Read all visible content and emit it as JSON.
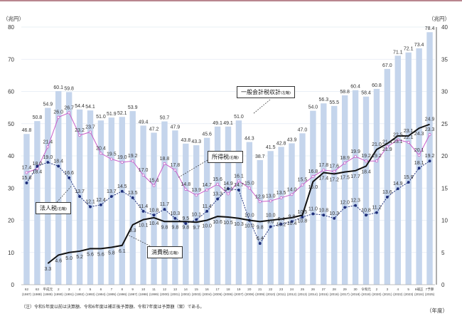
{
  "chart_data": {
    "type": "bar",
    "left_unit": "（兆円）",
    "right_unit": "（兆円）",
    "xlabel": "（年度）",
    "left_ylim": [
      0,
      80
    ],
    "right_ylim": [
      0,
      40
    ],
    "left_ticks": [
      0,
      10,
      20,
      30,
      40,
      50,
      60,
      70,
      80
    ],
    "right_ticks": [
      0,
      5,
      10,
      15,
      20,
      25,
      30,
      35,
      40
    ],
    "grid": true,
    "categories_era": [
      "62",
      "63",
      "平成元",
      "2",
      "3",
      "4",
      "5",
      "6",
      "7",
      "8",
      "9",
      "10",
      "11",
      "12",
      "13",
      "14",
      "15",
      "16",
      "17",
      "18",
      "19",
      "20",
      "21",
      "22",
      "23",
      "24",
      "25",
      "26",
      "27",
      "28",
      "29",
      "30",
      "令和元",
      "2",
      "3",
      "4",
      "5",
      "6補正",
      "7予算"
    ],
    "categories_year": [
      "(1987)",
      "(1988)",
      "(1989)",
      "(1990)",
      "(1991)",
      "(1992)",
      "(1993)",
      "(1994)",
      "(1995)",
      "(1996)",
      "(1997)",
      "(1998)",
      "(1999)",
      "(2000)",
      "(2001)",
      "(2002)",
      "(2003)",
      "(2004)",
      "(2005)",
      "(2006)",
      "(2007)",
      "(2008)",
      "(2009)",
      "(2010)",
      "(2011)",
      "(2012)",
      "(2013)",
      "(2014)",
      "(2015)",
      "(2016)",
      "(2017)",
      "(2018)",
      "(2019)",
      "(2020)",
      "(2021)",
      "(2022)",
      "(2023)",
      "(2024)",
      "(2025)"
    ],
    "series": [
      {
        "name": "一般会計税収計",
        "axis_note": "(左軸)",
        "type": "bar",
        "color": "#c5d5ec",
        "values": [
          46.8,
          50.8,
          54.9,
          60.1,
          59.8,
          54.4,
          54.1,
          51.0,
          51.9,
          52.1,
          53.9,
          49.4,
          47.2,
          50.7,
          47.9,
          43.8,
          43.3,
          45.6,
          49.1,
          49.1,
          51.0,
          44.3,
          38.7,
          41.5,
          42.8,
          43.9,
          47.0,
          54.0,
          56.3,
          55.5,
          58.8,
          60.4,
          58.4,
          60.8,
          67.0,
          71.1,
          72.1,
          73.4,
          78.4
        ]
      },
      {
        "name": "所得税",
        "axis_note": "(右軸)",
        "type": "line",
        "color": "#c85cc8",
        "values": [
          17.4,
          18.0,
          21.4,
          26.0,
          26.7,
          23.2,
          23.7,
          20.4,
          19.5,
          19.0,
          19.2,
          17.0,
          15.4,
          18.8,
          17.8,
          14.8,
          13.9,
          14.7,
          15.6,
          14.1,
          16.1,
          15.0,
          12.9,
          13.0,
          13.5,
          14.0,
          15.5,
          16.8,
          17.8,
          17.6,
          18.9,
          19.9,
          19.2,
          19.2,
          21.4,
          22.5,
          22.1,
          20.1,
          23.3
        ]
      },
      {
        "name": "法人税",
        "axis_note": "(右軸)",
        "type": "line",
        "dashed": true,
        "color": "#1f2f7a",
        "values": [
          15.8,
          18.4,
          19.0,
          18.4,
          16.6,
          13.7,
          12.1,
          12.4,
          13.7,
          14.5,
          13.5,
          11.4,
          10.8,
          11.7,
          10.3,
          9.5,
          10.1,
          11.4,
          13.3,
          14.9,
          14.7,
          10.0,
          6.4,
          9.0,
          9.4,
          9.8,
          10.5,
          11.0,
          10.8,
          10.3,
          12.0,
          12.3,
          10.8,
          11.2,
          13.6,
          14.9,
          15.9,
          18.1,
          19.2
        ]
      },
      {
        "name": "消費税",
        "axis_note": "(右軸)",
        "type": "line",
        "color": "#111111",
        "values": [
          null,
          null,
          3.3,
          4.6,
          5.0,
          5.2,
          5.6,
          5.6,
          5.8,
          6.1,
          9.3,
          10.1,
          10.4,
          9.8,
          9.8,
          9.8,
          9.7,
          10.0,
          10.6,
          10.5,
          10.3,
          10.0,
          9.8,
          10.0,
          10.2,
          10.4,
          10.8,
          16.0,
          17.4,
          17.2,
          17.5,
          17.7,
          18.4,
          21.0,
          21.9,
          23.1,
          23.1,
          24.3,
          24.9
        ]
      }
    ],
    "note": "（注）令和5年度以前は決算額、令和6年度は補正後予算額、令和7年度は予算額（案）である。"
  }
}
